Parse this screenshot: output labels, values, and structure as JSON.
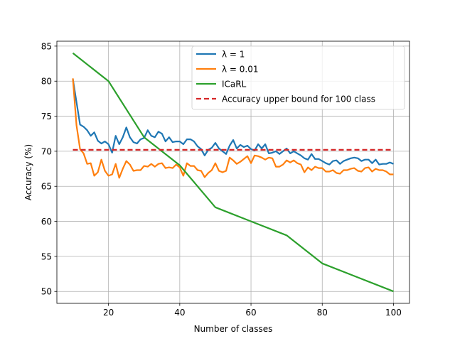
{
  "chart_data": {
    "type": "line",
    "title": "",
    "xlabel": "Number of classes",
    "ylabel": "Accuracy (%)",
    "xlim": [
      5.5,
      104.5
    ],
    "ylim": [
      48.3,
      85.7
    ],
    "xticks": [
      20,
      40,
      60,
      80,
      100
    ],
    "yticks": [
      50,
      55,
      60,
      65,
      70,
      75,
      80,
      85
    ],
    "grid": true,
    "legend": "top-right",
    "series": [
      {
        "name": "λ = 1",
        "color": "#1f77b4",
        "style": "solid",
        "x": [
          10,
          11,
          12,
          13,
          14,
          15,
          16,
          17,
          18,
          19,
          20,
          21,
          22,
          23,
          24,
          25,
          26,
          27,
          28,
          29,
          30,
          31,
          32,
          33,
          34,
          35,
          36,
          37,
          38,
          39,
          40,
          41,
          42,
          43,
          44,
          45,
          46,
          47,
          48,
          49,
          50,
          51,
          52,
          53,
          54,
          55,
          56,
          57,
          58,
          59,
          60,
          61,
          62,
          63,
          64,
          65,
          66,
          67,
          68,
          69,
          70,
          71,
          72,
          73,
          74,
          75,
          76,
          77,
          78,
          79,
          80,
          81,
          82,
          83,
          84,
          85,
          86,
          87,
          88,
          89,
          90,
          91,
          92,
          93,
          94,
          95,
          96,
          97,
          98,
          99,
          100
        ],
        "y": [
          80.3,
          77.0,
          73.8,
          73.5,
          73.0,
          72.2,
          72.7,
          71.5,
          71.1,
          71.4,
          71.0,
          69.8,
          72.2,
          71.0,
          72.0,
          73.4,
          72.0,
          71.3,
          71.1,
          71.7,
          71.9,
          73.0,
          72.2,
          72.0,
          72.8,
          72.5,
          71.4,
          72.0,
          71.3,
          71.4,
          71.4,
          71.0,
          71.7,
          71.7,
          71.4,
          70.7,
          70.3,
          69.4,
          70.2,
          70.5,
          71.2,
          70.4,
          70.0,
          69.6,
          70.8,
          71.6,
          70.4,
          70.9,
          70.6,
          70.8,
          70.3,
          70.1,
          71.0,
          70.4,
          71.0,
          69.7,
          69.8,
          70.0,
          69.6,
          70.0,
          70.4,
          69.7,
          70.0,
          69.7,
          69.4,
          69.0,
          68.8,
          69.6,
          68.9,
          68.9,
          68.6,
          68.3,
          68.1,
          68.6,
          68.7,
          68.2,
          68.6,
          68.8,
          69.0,
          69.1,
          69.0,
          68.6,
          68.8,
          68.8,
          68.3,
          68.8,
          68.1,
          68.2,
          68.2,
          68.4,
          68.2
        ]
      },
      {
        "name": "λ = 0.01",
        "color": "#ff7f0e",
        "style": "solid",
        "x": [
          10,
          11,
          12,
          13,
          14,
          15,
          16,
          17,
          18,
          19,
          20,
          21,
          22,
          23,
          24,
          25,
          26,
          27,
          28,
          29,
          30,
          31,
          32,
          33,
          34,
          35,
          36,
          37,
          38,
          39,
          40,
          41,
          42,
          43,
          44,
          45,
          46,
          47,
          48,
          49,
          50,
          51,
          52,
          53,
          54,
          55,
          56,
          57,
          58,
          59,
          60,
          61,
          62,
          63,
          64,
          65,
          66,
          67,
          68,
          69,
          70,
          71,
          72,
          73,
          74,
          75,
          76,
          77,
          78,
          79,
          80,
          81,
          82,
          83,
          84,
          85,
          86,
          87,
          88,
          89,
          90,
          91,
          92,
          93,
          94,
          95,
          96,
          97,
          98,
          99,
          100
        ],
        "y": [
          80.4,
          73.7,
          70.3,
          69.7,
          68.2,
          68.3,
          66.5,
          67.0,
          68.8,
          67.2,
          66.5,
          66.7,
          68.2,
          66.2,
          67.5,
          68.6,
          68.1,
          67.2,
          67.3,
          67.3,
          67.9,
          67.8,
          68.2,
          67.8,
          68.2,
          68.3,
          67.6,
          67.7,
          67.6,
          68.1,
          67.7,
          66.5,
          68.3,
          67.9,
          67.9,
          67.3,
          67.2,
          66.3,
          66.9,
          67.3,
          68.3,
          67.2,
          67.0,
          67.2,
          69.1,
          68.7,
          68.2,
          68.5,
          68.9,
          69.3,
          68.3,
          69.4,
          69.3,
          69.1,
          68.8,
          69.1,
          69.0,
          67.8,
          67.8,
          68.1,
          68.7,
          68.4,
          68.7,
          68.3,
          68.1,
          67.0,
          67.7,
          67.3,
          67.8,
          67.6,
          67.6,
          67.1,
          67.1,
          67.3,
          66.9,
          66.8,
          67.3,
          67.3,
          67.5,
          67.6,
          67.2,
          67.1,
          67.6,
          67.7,
          67.1,
          67.5,
          67.3,
          67.3,
          67.1,
          66.7,
          66.7
        ]
      },
      {
        "name": "ICaRL",
        "color": "#2ca02c",
        "style": "solid",
        "x": [
          10,
          20,
          30,
          40,
          50,
          60,
          70,
          80,
          90,
          100
        ],
        "y": [
          84,
          80,
          72,
          68,
          62,
          60,
          58,
          54,
          52,
          50
        ]
      },
      {
        "name": "Accuracy upper bound for 100 class",
        "color": "#d62728",
        "style": "dashed",
        "x": [
          10,
          100
        ],
        "y": [
          70.2,
          70.2
        ]
      }
    ]
  }
}
